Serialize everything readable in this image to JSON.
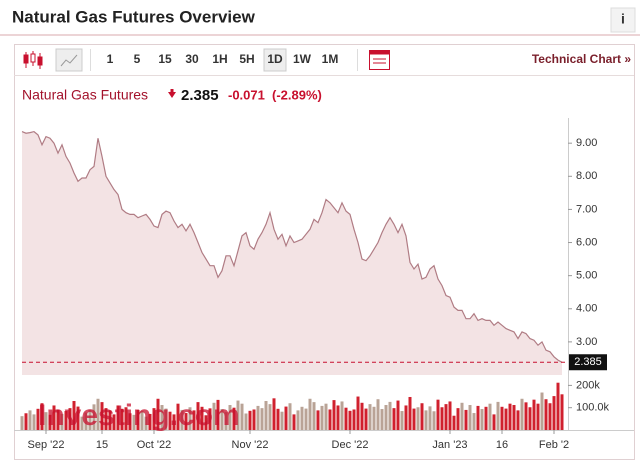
{
  "header": {
    "title": "Natural Gas Futures Overview",
    "info": "i"
  },
  "toolbar": {
    "intervals": [
      "1",
      "5",
      "15",
      "30",
      "1H",
      "5H",
      "1D",
      "1W",
      "1M"
    ],
    "selected": "1D",
    "link": "Technical Chart »"
  },
  "quote": {
    "name": "Natural Gas Futures",
    "last": 2.385,
    "change": -0.071,
    "change_pct": "(-2.89%)"
  },
  "watermark": "Investing.com",
  "chart_data": [
    {
      "type": "area",
      "color": "#b07c84",
      "fill": "#f3e3e4",
      "last_color": "#c8102e",
      "categories": [
        null,
        null,
        null,
        null,
        null,
        null,
        "Sep '22",
        null,
        null,
        null,
        null,
        null,
        null,
        null,
        null,
        null,
        null,
        null,
        null,
        null,
        "15",
        null,
        null,
        null,
        null,
        null,
        null,
        null,
        null,
        null,
        null,
        null,
        null,
        "Oct '22",
        null,
        null,
        null,
        null,
        null,
        null,
        null,
        null,
        null,
        null,
        null,
        null,
        null,
        null,
        null,
        null,
        null,
        null,
        null,
        null,
        null,
        null,
        null,
        "Nov '22",
        null,
        null,
        null,
        null,
        null,
        null,
        null,
        null,
        null,
        null,
        null,
        null,
        null,
        null,
        null,
        null,
        null,
        null,
        null,
        null,
        null,
        null,
        null,
        null,
        "Dec '22",
        null,
        null,
        null,
        null,
        null,
        null,
        null,
        null,
        null,
        null,
        null,
        null,
        null,
        null,
        null,
        null,
        null,
        null,
        null,
        null,
        null,
        null,
        null,
        null,
        "Jan '23",
        null,
        null,
        null,
        null,
        null,
        null,
        null,
        null,
        null,
        null,
        null,
        null,
        "16",
        null,
        null,
        null,
        null,
        null,
        null,
        null,
        null,
        null,
        null,
        null,
        null,
        "Feb '2",
        null,
        null
      ],
      "values": [
        9.35,
        9.3,
        9.32,
        9.35,
        9.25,
        8.95,
        9.2,
        9.15,
        9.0,
        8.7,
        8.95,
        8.6,
        8.4,
        8.1,
        7.85,
        7.95,
        7.95,
        8.2,
        8.3,
        9.15,
        8.6,
        8.0,
        7.8,
        7.6,
        7.45,
        7.0,
        6.9,
        6.85,
        6.85,
        6.75,
        6.8,
        6.85,
        6.7,
        6.5,
        6.45,
        6.85,
        6.95,
        6.9,
        6.65,
        6.45,
        6.55,
        6.35,
        6.55,
        6.3,
        6.0,
        5.7,
        5.5,
        5.3,
        5.3,
        4.95,
        5.15,
        5.6,
        5.6,
        5.3,
        5.75,
        6.2,
        6.3,
        5.9,
        5.8,
        6.1,
        6.3,
        6.55,
        6.9,
        6.4,
        6.1,
        6.25,
        5.9,
        6.2,
        6.0,
        6.05,
        6.1,
        6.25,
        6.4,
        6.7,
        6.6,
        6.9,
        7.3,
        7.2,
        7.05,
        6.9,
        7.2,
        6.95,
        6.85,
        6.4,
        6.0,
        5.5,
        5.45,
        5.6,
        5.8,
        6.0,
        6.3,
        6.55,
        6.75,
        6.55,
        6.3,
        6.55,
        6.2,
        5.4,
        5.2,
        5.35,
        4.9,
        4.95,
        5.2,
        5.3,
        4.9,
        4.7,
        4.4,
        4.35,
        4.05,
        3.95,
        3.95,
        3.7,
        3.7,
        3.85,
        3.65,
        3.7,
        3.65,
        3.65,
        3.5,
        3.6,
        3.5,
        3.4,
        3.35,
        3.3,
        3.1,
        3.3,
        3.25,
        3.1,
        3.05,
        2.9,
        3.0,
        2.75,
        2.7,
        2.55,
        2.45,
        2.385
      ],
      "ylim": [
        2.0,
        9.7
      ],
      "yticks": [
        {
          "value": 3,
          "label": "3.00"
        },
        {
          "value": 4,
          "label": "4.00"
        },
        {
          "value": 5,
          "label": "5.00"
        },
        {
          "value": 6,
          "label": "6.00"
        },
        {
          "value": 7,
          "label": "7.00"
        },
        {
          "value": 8,
          "label": "8.00"
        },
        {
          "value": 9,
          "label": "9.00"
        }
      ]
    },
    {
      "type": "bar",
      "up_color": "#b9a396",
      "down_color": "#d0202e",
      "values": [
        62000,
        75000,
        88000,
        70000,
        95000,
        120000,
        80000,
        68000,
        110000,
        90000,
        72000,
        85000,
        98000,
        130000,
        105000,
        60000,
        78000,
        92000,
        115000,
        140000,
        125000,
        98000,
        88000,
        70000,
        110000,
        95000,
        102000,
        75000,
        68000,
        90000,
        86000,
        60000,
        72000,
        98000,
        140000,
        112000,
        96000,
        82000,
        70000,
        118000,
        90000,
        76000,
        102000,
        88000,
        125000,
        104000,
        66000,
        97000,
        122000,
        135000,
        94000,
        80000,
        112000,
        100000,
        132000,
        118000,
        74000,
        86000,
        92000,
        108000,
        98000,
        130000,
        116000,
        142000,
        95000,
        82000,
        105000,
        120000,
        70000,
        88000,
        104000,
        96000,
        140000,
        125000,
        88000,
        108000,
        118000,
        92000,
        134000,
        110000,
        128000,
        100000,
        86000,
        92000,
        150000,
        122000,
        96000,
        116000,
        104000,
        138000,
        94000,
        112000,
        126000,
        98000,
        132000,
        85000,
        110000,
        148000,
        96000,
        102000,
        120000,
        88000,
        106000,
        84000,
        136000,
        102000,
        116000,
        128000,
        64000,
        98000,
        122000,
        90000,
        112000,
        76000,
        108000,
        94000,
        104000,
        118000,
        70000,
        126000,
        104000,
        96000,
        118000,
        112000,
        88000,
        140000,
        124000,
        102000,
        136000,
        118000,
        168000,
        138000,
        120000,
        152000,
        212000,
        160000
      ],
      "ylim": [
        0,
        260000
      ],
      "yticks": [
        {
          "value": 100000,
          "label": "100.0k"
        },
        {
          "value": 200000,
          "label": "200k"
        }
      ]
    }
  ]
}
